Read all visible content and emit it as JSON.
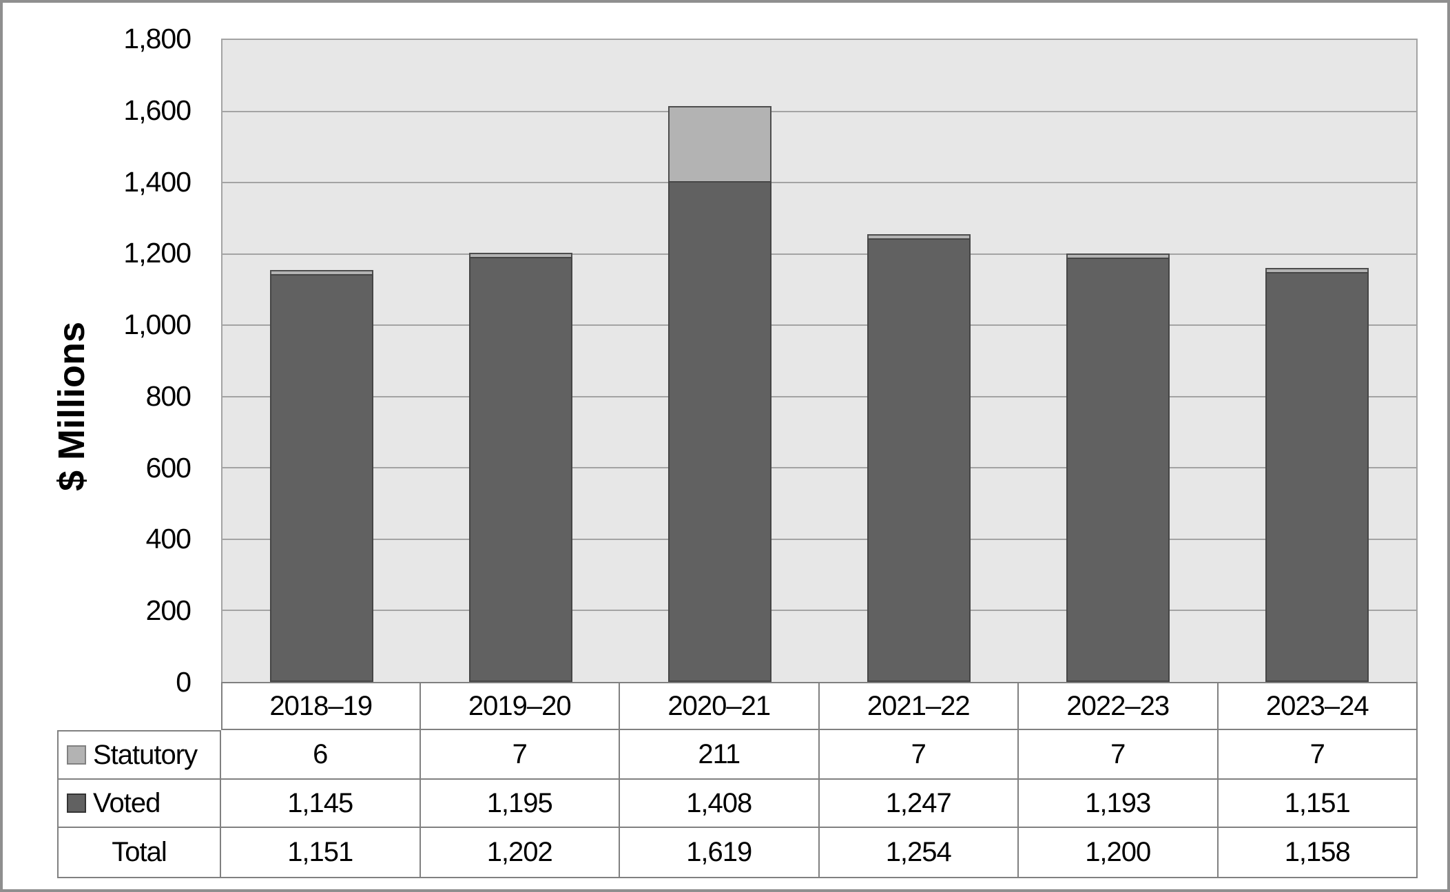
{
  "chart_data": {
    "type": "bar",
    "stacked": true,
    "title": "",
    "xlabel": "",
    "ylabel": "$ Millions",
    "categories": [
      "2018–19",
      "2019–20",
      "2020–21",
      "2021–22",
      "2022–23",
      "2023–24"
    ],
    "series": [
      {
        "name": "Statutory",
        "color": "#b3b3b3",
        "values": [
          6,
          7,
          211,
          7,
          7,
          7
        ]
      },
      {
        "name": "Voted",
        "color": "#616161",
        "values": [
          1145,
          1195,
          1408,
          1247,
          1193,
          1151
        ]
      }
    ],
    "totals": [
      1151,
      1202,
      1619,
      1254,
      1200,
      1158
    ],
    "ylim": [
      0,
      1800
    ],
    "ytick_step": 200,
    "ytick_labels": [
      "1,800",
      "1,600",
      "1,400",
      "1,200",
      "1,000",
      "800",
      "600",
      "400",
      "200",
      "0"
    ],
    "grid": "horizontal",
    "legend_position": "table-left",
    "plot_bg": "#e7e7e7",
    "gridline_color": "#a3a3a3"
  },
  "legend": [
    {
      "label": "Statutory",
      "fill": "#b3b3b3",
      "border": "#808080"
    },
    {
      "label": "Voted",
      "fill": "#616161",
      "border": "#333333"
    }
  ],
  "table": {
    "year_headers": [
      "2018–19",
      "2019–20",
      "2020–21",
      "2021–22",
      "2022–23",
      "2023–24"
    ],
    "rows": [
      {
        "label": "Statutory",
        "has_key": true,
        "key_index": 0,
        "values": [
          "6",
          "7",
          "211",
          "7",
          "7",
          "7"
        ]
      },
      {
        "label": "Voted",
        "has_key": true,
        "key_index": 1,
        "values": [
          "1,145",
          "1,195",
          "1,408",
          "1,247",
          "1,193",
          "1,151"
        ]
      },
      {
        "label": "Total",
        "has_key": false,
        "key_index": -1,
        "values": [
          "1,151",
          "1,202",
          "1,619",
          "1,254",
          "1,200",
          "1,158"
        ]
      }
    ]
  }
}
